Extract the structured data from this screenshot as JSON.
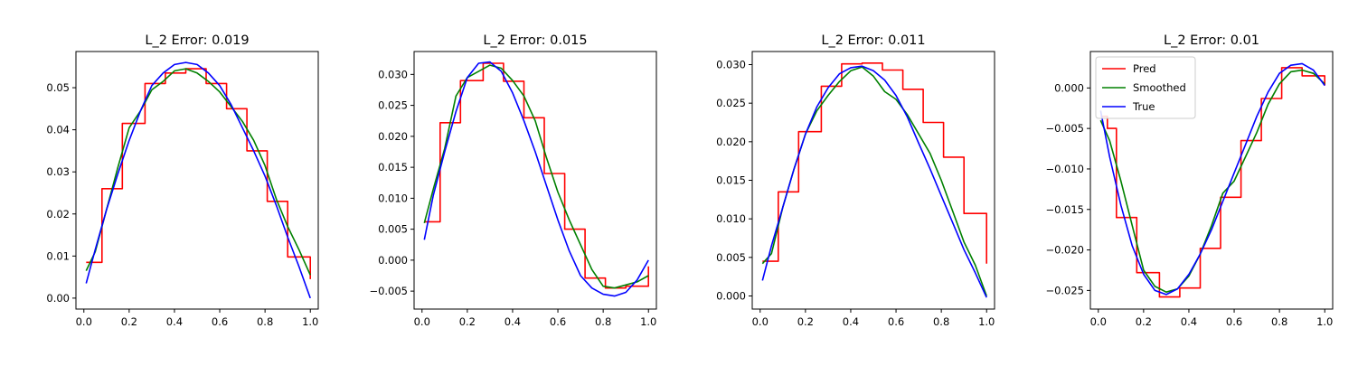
{
  "chart_data": [
    {
      "type": "line",
      "title": "L_2 Error: 0.019",
      "xlabel": "",
      "ylabel": "",
      "xlim": [
        -0.035,
        1.035
      ],
      "ylim": [
        -0.0026,
        0.0586
      ],
      "xticks": [
        0.0,
        0.2,
        0.4,
        0.6,
        0.8,
        1.0
      ],
      "yticks": [
        0.0,
        0.01,
        0.02,
        0.03,
        0.04,
        0.05
      ],
      "xtick_labels": [
        "0.0",
        "0.2",
        "0.4",
        "0.6",
        "0.8",
        "1.0"
      ],
      "ytick_labels": [
        "0.00",
        "0.01",
        "0.02",
        "0.03",
        "0.04",
        "0.05"
      ],
      "grid": false,
      "legend": null,
      "series": [
        {
          "style": "step",
          "color": "#ff0000",
          "x": [
            0.01,
            0.08,
            0.17,
            0.27,
            0.36,
            0.45,
            0.54,
            0.63,
            0.72,
            0.81,
            0.9,
            1.0
          ],
          "y": [
            0.0085,
            0.026,
            0.0415,
            0.051,
            0.0535,
            0.0545,
            0.051,
            0.045,
            0.035,
            0.023,
            0.0098,
            0.0045
          ]
        },
        {
          "style": "line",
          "color": "#008000",
          "x": [
            0.01,
            0.05,
            0.1,
            0.15,
            0.2,
            0.25,
            0.3,
            0.35,
            0.4,
            0.45,
            0.5,
            0.55,
            0.6,
            0.65,
            0.7,
            0.75,
            0.8,
            0.85,
            0.9,
            0.95,
            1.0
          ],
          "y": [
            0.0065,
            0.011,
            0.021,
            0.031,
            0.0405,
            0.0445,
            0.0495,
            0.0515,
            0.054,
            0.0545,
            0.0535,
            0.0515,
            0.049,
            0.0455,
            0.042,
            0.0375,
            0.0315,
            0.0235,
            0.017,
            0.0115,
            0.0055
          ]
        },
        {
          "style": "line",
          "color": "#0000ff",
          "x": [
            0.01,
            0.05,
            0.1,
            0.15,
            0.2,
            0.25,
            0.3,
            0.35,
            0.4,
            0.45,
            0.5,
            0.55,
            0.6,
            0.65,
            0.7,
            0.75,
            0.8,
            0.85,
            0.9,
            0.95,
            1.0
          ],
          "y": [
            0.0035,
            0.0115,
            0.021,
            0.0295,
            0.0375,
            0.0445,
            0.0505,
            0.0535,
            0.0555,
            0.056,
            0.0555,
            0.0535,
            0.0505,
            0.046,
            0.0405,
            0.035,
            0.029,
            0.022,
            0.0145,
            0.0075,
            0.0
          ]
        }
      ]
    },
    {
      "type": "line",
      "title": "L_2 Error: 0.015",
      "xlabel": "",
      "ylabel": "",
      "xlim": [
        -0.035,
        1.035
      ],
      "ylim": [
        -0.0079,
        0.0337
      ],
      "xticks": [
        0.0,
        0.2,
        0.4,
        0.6,
        0.8,
        1.0
      ],
      "yticks": [
        -0.005,
        0.0,
        0.005,
        0.01,
        0.015,
        0.02,
        0.025,
        0.03
      ],
      "xtick_labels": [
        "0.0",
        "0.2",
        "0.4",
        "0.6",
        "0.8",
        "1.0"
      ],
      "ytick_labels": [
        "−0.005",
        "0.000",
        "0.005",
        "0.010",
        "0.015",
        "0.020",
        "0.025",
        "0.030"
      ],
      "grid": false,
      "legend": null,
      "series": [
        {
          "style": "step",
          "color": "#ff0000",
          "x": [
            0.01,
            0.08,
            0.17,
            0.27,
            0.36,
            0.45,
            0.54,
            0.63,
            0.72,
            0.81,
            0.9,
            1.0
          ],
          "y": [
            0.0062,
            0.0222,
            0.029,
            0.0318,
            0.0289,
            0.023,
            0.014,
            0.005,
            -0.0029,
            -0.0045,
            -0.0042,
            -0.001
          ]
        },
        {
          "style": "line",
          "color": "#008000",
          "x": [
            0.01,
            0.05,
            0.1,
            0.15,
            0.2,
            0.25,
            0.3,
            0.35,
            0.4,
            0.45,
            0.5,
            0.55,
            0.6,
            0.65,
            0.7,
            0.75,
            0.8,
            0.85,
            0.9,
            0.95,
            1.0
          ],
          "y": [
            0.006,
            0.0115,
            0.018,
            0.0265,
            0.0295,
            0.0305,
            0.0315,
            0.031,
            0.029,
            0.0265,
            0.0225,
            0.0165,
            0.011,
            0.0065,
            0.0025,
            -0.0015,
            -0.0042,
            -0.0045,
            -0.004,
            -0.0035,
            -0.0025
          ]
        },
        {
          "style": "line",
          "color": "#0000ff",
          "x": [
            0.01,
            0.05,
            0.1,
            0.15,
            0.2,
            0.25,
            0.3,
            0.35,
            0.4,
            0.45,
            0.5,
            0.55,
            0.6,
            0.65,
            0.7,
            0.75,
            0.8,
            0.85,
            0.9,
            0.95,
            1.0
          ],
          "y": [
            0.0033,
            0.0105,
            0.0175,
            0.024,
            0.0295,
            0.0318,
            0.032,
            0.0305,
            0.027,
            0.0225,
            0.0175,
            0.012,
            0.0065,
            0.0015,
            -0.0025,
            -0.0045,
            -0.0055,
            -0.0058,
            -0.0052,
            -0.0032,
            0.0
          ]
        }
      ]
    },
    {
      "type": "line",
      "title": "L_2 Error: 0.011",
      "xlabel": "",
      "ylabel": "",
      "xlim": [
        -0.035,
        1.035
      ],
      "ylim": [
        -0.0017,
        0.0317
      ],
      "xticks": [
        0.0,
        0.2,
        0.4,
        0.6,
        0.8,
        1.0
      ],
      "yticks": [
        0.0,
        0.005,
        0.01,
        0.015,
        0.02,
        0.025,
        0.03
      ],
      "xtick_labels": [
        "0.0",
        "0.2",
        "0.4",
        "0.6",
        "0.8",
        "1.0"
      ],
      "ytick_labels": [
        "0.000",
        "0.005",
        "0.010",
        "0.015",
        "0.020",
        "0.025",
        "0.030"
      ],
      "grid": false,
      "legend": null,
      "series": [
        {
          "style": "step",
          "color": "#ff0000",
          "x": [
            0.01,
            0.08,
            0.17,
            0.27,
            0.36,
            0.45,
            0.54,
            0.63,
            0.72,
            0.81,
            0.9,
            1.0
          ],
          "y": [
            0.0045,
            0.0135,
            0.0213,
            0.0272,
            0.0301,
            0.0302,
            0.0293,
            0.0268,
            0.0225,
            0.018,
            0.0107,
            0.0042
          ]
        },
        {
          "style": "line",
          "color": "#008000",
          "x": [
            0.01,
            0.05,
            0.1,
            0.15,
            0.2,
            0.25,
            0.3,
            0.35,
            0.4,
            0.45,
            0.5,
            0.55,
            0.6,
            0.65,
            0.7,
            0.75,
            0.8,
            0.85,
            0.9,
            0.95,
            1.0
          ],
          "y": [
            0.0042,
            0.0055,
            0.0115,
            0.0165,
            0.021,
            0.024,
            0.026,
            0.0278,
            0.0292,
            0.0297,
            0.0285,
            0.0265,
            0.0255,
            0.0235,
            0.021,
            0.0185,
            0.015,
            0.011,
            0.007,
            0.004,
            0.0
          ]
        },
        {
          "style": "line",
          "color": "#0000ff",
          "x": [
            0.01,
            0.05,
            0.1,
            0.15,
            0.2,
            0.25,
            0.3,
            0.35,
            0.4,
            0.45,
            0.5,
            0.55,
            0.6,
            0.65,
            0.7,
            0.75,
            0.8,
            0.85,
            0.9,
            0.95,
            1.0
          ],
          "y": [
            0.002,
            0.0065,
            0.0115,
            0.0165,
            0.021,
            0.0245,
            0.027,
            0.0288,
            0.0296,
            0.0298,
            0.0292,
            0.028,
            0.026,
            0.0232,
            0.0198,
            0.0165,
            0.013,
            0.0095,
            0.006,
            0.003,
            -0.0002
          ]
        }
      ]
    },
    {
      "type": "line",
      "title": "L_2 Error: 0.01",
      "xlabel": "",
      "ylabel": "",
      "xlim": [
        -0.035,
        1.035
      ],
      "ylim": [
        -0.0273,
        0.0045
      ],
      "xticks": [
        0.0,
        0.2,
        0.4,
        0.6,
        0.8,
        1.0
      ],
      "yticks": [
        -0.025,
        -0.02,
        -0.015,
        -0.01,
        -0.005,
        0.0
      ],
      "xtick_labels": [
        "0.0",
        "0.2",
        "0.4",
        "0.6",
        "0.8",
        "1.0"
      ],
      "ytick_labels": [
        "−0.025",
        "−0.020",
        "−0.015",
        "−0.010",
        "−0.005",
        "0.000"
      ],
      "grid": false,
      "legend": {
        "placement": "upper-left",
        "entries": [
          "Pred",
          "Smoothed",
          "True"
        ]
      },
      "series": [
        {
          "name": "Pred",
          "style": "step",
          "color": "#ff0000",
          "x": [
            0.01,
            0.04,
            0.08,
            0.17,
            0.27,
            0.36,
            0.45,
            0.54,
            0.63,
            0.72,
            0.81,
            0.9,
            1.0
          ],
          "y": [
            -0.0035,
            -0.005,
            -0.016,
            -0.0228,
            -0.0258,
            -0.0247,
            -0.0198,
            -0.0135,
            -0.0065,
            -0.0013,
            0.0025,
            0.0015,
            0.0003
          ]
        },
        {
          "name": "Smoothed",
          "style": "line",
          "color": "#008000",
          "x": [
            0.01,
            0.05,
            0.1,
            0.15,
            0.2,
            0.25,
            0.3,
            0.35,
            0.4,
            0.45,
            0.5,
            0.55,
            0.6,
            0.65,
            0.7,
            0.75,
            0.8,
            0.85,
            0.9,
            0.95,
            1.0
          ],
          "y": [
            -0.004,
            -0.0065,
            -0.0115,
            -0.017,
            -0.0225,
            -0.0245,
            -0.0252,
            -0.0248,
            -0.0232,
            -0.0205,
            -0.017,
            -0.013,
            -0.0115,
            -0.0085,
            -0.0055,
            -0.002,
            0.0005,
            0.002,
            0.0022,
            0.0018,
            0.0005
          ]
        },
        {
          "name": "True",
          "style": "line",
          "color": "#0000ff",
          "x": [
            0.01,
            0.05,
            0.1,
            0.15,
            0.2,
            0.25,
            0.3,
            0.35,
            0.4,
            0.45,
            0.5,
            0.55,
            0.6,
            0.65,
            0.7,
            0.75,
            0.8,
            0.85,
            0.9,
            0.95,
            1.0
          ],
          "y": [
            -0.0028,
            -0.0085,
            -0.0145,
            -0.0195,
            -0.023,
            -0.025,
            -0.0255,
            -0.0248,
            -0.023,
            -0.0205,
            -0.0175,
            -0.014,
            -0.0105,
            -0.007,
            -0.0035,
            -0.0005,
            0.0018,
            0.0028,
            0.003,
            0.0022,
            0.0003
          ]
        }
      ]
    }
  ]
}
